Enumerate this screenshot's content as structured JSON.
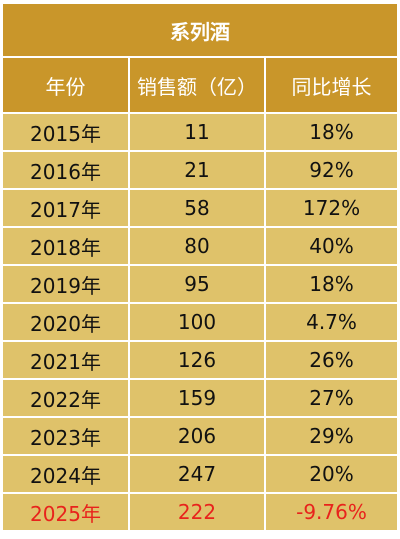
{
  "chart_data": {
    "type": "table",
    "title": "系列酒",
    "columns": [
      "年份",
      "销售额（亿）",
      "同比增长"
    ],
    "rows": [
      {
        "year": "2015年",
        "sales": "11",
        "growth": "18%"
      },
      {
        "year": "2016年",
        "sales": "21",
        "growth": "92%"
      },
      {
        "year": "2017年",
        "sales": "58",
        "growth": "172%"
      },
      {
        "year": "2018年",
        "sales": "80",
        "growth": "40%"
      },
      {
        "year": "2019年",
        "sales": "95",
        "growth": "18%"
      },
      {
        "year": "2020年",
        "sales": "100",
        "growth": "4.7%"
      },
      {
        "year": "2021年",
        "sales": "126",
        "growth": "26%"
      },
      {
        "year": "2022年",
        "sales": "159",
        "growth": "27%"
      },
      {
        "year": "2023年",
        "sales": "206",
        "growth": "29%"
      },
      {
        "year": "2024年",
        "sales": "247",
        "growth": "20%"
      },
      {
        "year": "2025年",
        "sales": "222",
        "growth": "-9.76%",
        "highlight": true
      }
    ],
    "colors": {
      "header_bg": "#c9962a",
      "cell_bg": "#dfc26a",
      "highlight_text": "#e8231c"
    }
  }
}
